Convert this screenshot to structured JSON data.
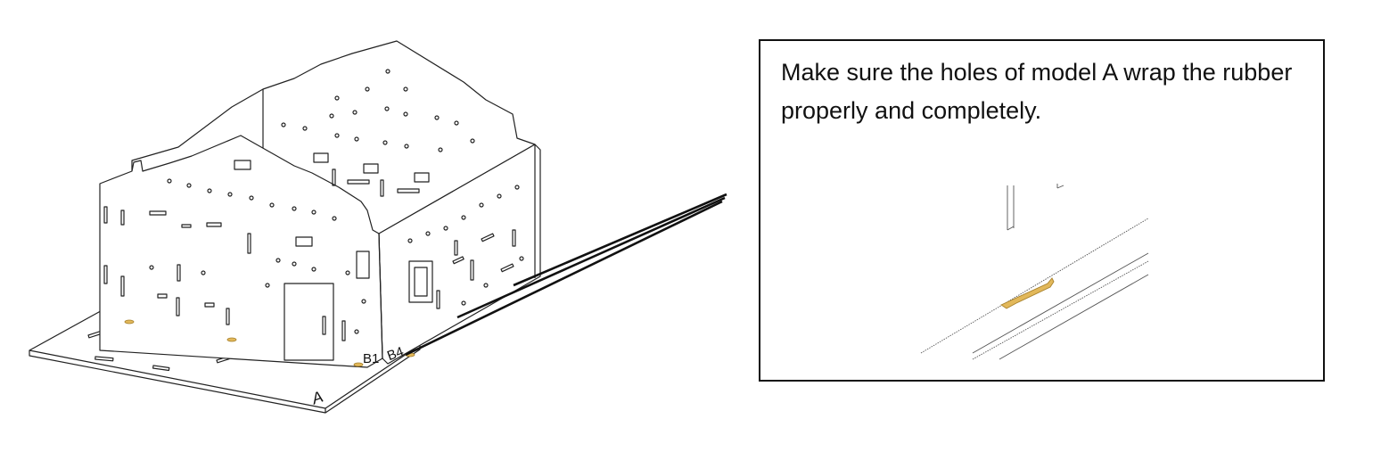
{
  "callout": {
    "text": "Make sure the holes of model A wrap the rubber properly and completely."
  },
  "labels": {
    "base_plate": "A",
    "panel_b1": "B1",
    "panel_b4": "B4"
  },
  "colors": {
    "line": "#222222",
    "rubber": "#e2b85a",
    "rubber_stroke": "#a8822d"
  }
}
